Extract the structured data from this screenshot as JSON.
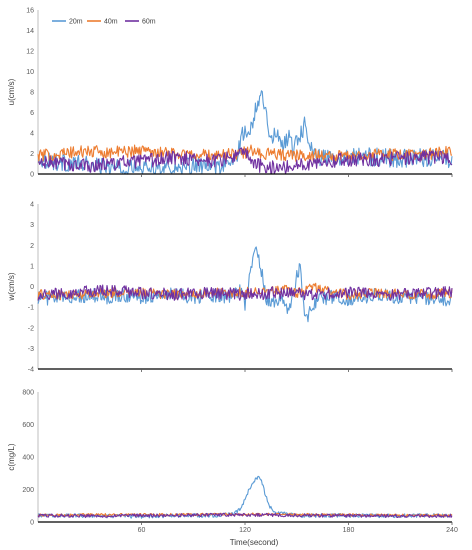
{
  "figure": {
    "xlabel": "Time(second)"
  },
  "series_colors": {
    "20m": "#5b9bd5",
    "40m": "#ed7d31",
    "60m": "#7030a0"
  },
  "chart_data": [
    {
      "type": "line",
      "ylabel": "u(cm/s)",
      "ylim": [
        0,
        16
      ],
      "yticks": [
        0,
        2,
        4,
        6,
        8,
        10,
        12,
        14,
        16
      ],
      "xlim": [
        0,
        240
      ],
      "xticks": [
        60,
        120,
        180,
        240
      ],
      "show_xticklabels": false,
      "legend": "top-left",
      "series": [
        {
          "name": "20m",
          "color": "#5b9bd5",
          "x": [
            0,
            10,
            20,
            30,
            40,
            50,
            60,
            70,
            80,
            90,
            100,
            110,
            115,
            118,
            120,
            122,
            124,
            126,
            128,
            130,
            132,
            134,
            136,
            138,
            140,
            142,
            145,
            148,
            150,
            155,
            158,
            160,
            165,
            170,
            180,
            190,
            200,
            210,
            220,
            230,
            240
          ],
          "y": [
            1.6,
            1.2,
            1.0,
            0.8,
            0.6,
            0.5,
            0.5,
            0.6,
            0.6,
            0.7,
            0.6,
            0.8,
            1.5,
            3.5,
            4.5,
            3.5,
            4.8,
            6.5,
            7.5,
            7.8,
            6.0,
            4.5,
            3.0,
            4.2,
            3.5,
            2.8,
            3.8,
            2.5,
            3.5,
            4.8,
            3.0,
            2.0,
            1.5,
            1.6,
            1.8,
            1.7,
            1.6,
            1.5,
            1.6,
            1.6,
            1.5
          ],
          "noise": 0.9
        },
        {
          "name": "40m",
          "color": "#ed7d31",
          "x": [
            0,
            10,
            20,
            30,
            40,
            50,
            60,
            70,
            80,
            90,
            100,
            110,
            120,
            125,
            130,
            140,
            150,
            160,
            170,
            180,
            190,
            200,
            210,
            220,
            230,
            240
          ],
          "y": [
            1.8,
            1.9,
            2.1,
            2.2,
            2.1,
            2.2,
            2.3,
            2.2,
            2.0,
            1.9,
            1.8,
            1.9,
            2.1,
            2.3,
            2.0,
            1.9,
            1.8,
            1.9,
            1.7,
            1.8,
            1.9,
            2.0,
            1.8,
            1.9,
            2.0,
            2.2
          ],
          "noise": 0.6
        },
        {
          "name": "60m",
          "color": "#7030a0",
          "x": [
            0,
            10,
            20,
            30,
            40,
            50,
            60,
            70,
            80,
            90,
            100,
            110,
            118,
            122,
            125,
            130,
            140,
            150,
            160,
            170,
            180,
            190,
            200,
            210,
            220,
            230,
            240
          ],
          "y": [
            1.0,
            1.1,
            0.9,
            0.8,
            1.0,
            1.1,
            1.2,
            1.4,
            1.6,
            1.5,
            1.3,
            1.5,
            2.0,
            1.8,
            1.0,
            0.7,
            0.6,
            0.8,
            1.2,
            1.3,
            1.4,
            1.5,
            1.4,
            1.5,
            1.6,
            1.7,
            1.5
          ],
          "noise": 0.7
        }
      ]
    },
    {
      "type": "line",
      "ylabel": "w(cm/s)",
      "ylim": [
        -4,
        4
      ],
      "yticks": [
        -4,
        -3,
        -2,
        -1,
        0,
        1,
        2,
        3,
        4
      ],
      "xlim": [
        0,
        240
      ],
      "xticks": [
        60,
        120,
        180,
        240
      ],
      "show_xticklabels": false,
      "series": [
        {
          "name": "20m",
          "color": "#5b9bd5",
          "x": [
            0,
            10,
            20,
            30,
            40,
            50,
            60,
            70,
            80,
            90,
            100,
            110,
            115,
            118,
            120,
            122,
            124,
            126,
            128,
            130,
            132,
            135,
            140,
            145,
            148,
            150,
            152,
            155,
            158,
            160,
            165,
            170,
            180,
            190,
            200,
            210,
            220,
            230,
            240
          ],
          "y": [
            -0.5,
            -0.6,
            -0.5,
            -0.4,
            -0.5,
            -0.4,
            -0.5,
            -0.4,
            -0.4,
            -0.5,
            -0.4,
            -0.5,
            -0.3,
            -0.2,
            -0.8,
            0.2,
            1.2,
            2.0,
            1.5,
            0.5,
            -0.5,
            -0.8,
            -0.6,
            -1.0,
            -0.5,
            0.5,
            1.0,
            -1.6,
            -1.2,
            -0.8,
            -0.6,
            -0.5,
            -0.6,
            -0.5,
            -0.4,
            -0.5,
            -0.5,
            -0.6,
            -0.6
          ],
          "noise": 0.35
        },
        {
          "name": "40m",
          "color": "#ed7d31",
          "x": [
            0,
            20,
            40,
            60,
            80,
            100,
            120,
            130,
            140,
            150,
            160,
            170,
            180,
            200,
            220,
            240
          ],
          "y": [
            -0.4,
            -0.4,
            -0.3,
            -0.3,
            -0.4,
            -0.3,
            -0.3,
            -0.2,
            -0.1,
            -0.3,
            0.0,
            -0.3,
            -0.4,
            -0.3,
            -0.4,
            -0.3
          ],
          "noise": 0.25
        },
        {
          "name": "60m",
          "color": "#7030a0",
          "x": [
            0,
            20,
            40,
            60,
            80,
            100,
            120,
            140,
            160,
            180,
            200,
            220,
            240
          ],
          "y": [
            -0.4,
            -0.3,
            -0.2,
            -0.3,
            -0.4,
            -0.3,
            -0.4,
            -0.3,
            -0.4,
            -0.3,
            -0.4,
            -0.3,
            -0.3
          ],
          "noise": 0.3
        }
      ]
    },
    {
      "type": "line",
      "ylabel": "c(mg/L)",
      "ylim": [
        0,
        800
      ],
      "yticks": [
        0,
        200,
        400,
        600,
        800
      ],
      "xlim": [
        0,
        240
      ],
      "xticks": [
        60,
        120,
        180,
        240
      ],
      "show_xticklabels": true,
      "series": [
        {
          "name": "20m",
          "color": "#5b9bd5",
          "x": [
            0,
            20,
            40,
            60,
            80,
            100,
            110,
            115,
            118,
            120,
            122,
            124,
            126,
            128,
            130,
            132,
            134,
            136,
            140,
            145,
            150,
            160,
            180,
            200,
            220,
            240
          ],
          "y": [
            40,
            40,
            35,
            35,
            40,
            40,
            45,
            60,
            90,
            140,
            190,
            230,
            260,
            280,
            240,
            160,
            100,
            70,
            55,
            45,
            40,
            40,
            40,
            38,
            40,
            40
          ],
          "noise": 12
        },
        {
          "name": "40m",
          "color": "#ed7d31",
          "x": [
            0,
            40,
            80,
            120,
            160,
            200,
            240
          ],
          "y": [
            42,
            45,
            45,
            48,
            45,
            42,
            40
          ],
          "noise": 8
        },
        {
          "name": "60m",
          "color": "#7030a0",
          "x": [
            0,
            40,
            80,
            120,
            160,
            200,
            240
          ],
          "y": [
            40,
            38,
            42,
            45,
            40,
            38,
            38
          ],
          "noise": 10
        }
      ]
    }
  ]
}
